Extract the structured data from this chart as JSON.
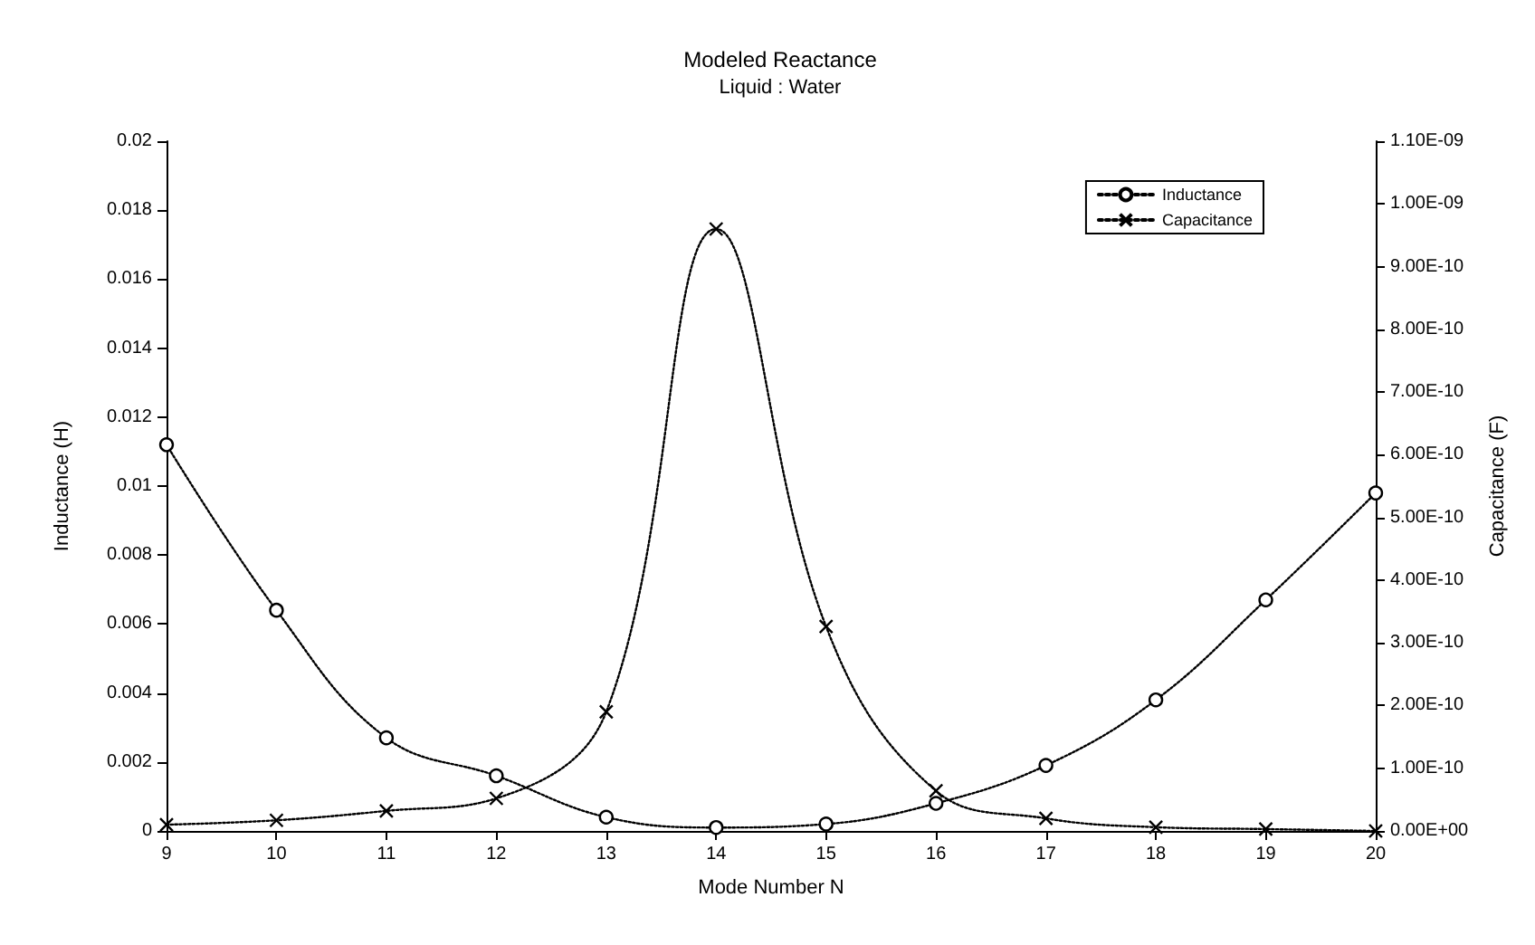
{
  "chart_data": {
    "type": "line",
    "title": "Modeled Reactance",
    "subtitle": "Liquid : Water",
    "xlabel": "Mode Number N",
    "ylabel": "Inductance (H)",
    "y2label": "Capacitance (F)",
    "x": [
      9,
      10,
      11,
      12,
      13,
      14,
      15,
      16,
      17,
      18,
      19,
      20
    ],
    "series": [
      {
        "name": "Inductance",
        "color": "#000000",
        "marker": "circle",
        "values": [
          0.0112,
          0.0064,
          0.0027,
          0.0016,
          0.0004,
          0.0001,
          0.0002,
          0.0008,
          0.0019,
          0.0038,
          0.0067,
          0.0098
        ]
      },
      {
        "name": "Capacitance",
        "color": "#000000",
        "marker": "cross",
        "axis": "y2",
        "values": [
          1e-11,
          1.7e-11,
          3.2e-11,
          5.2e-11,
          1.9e-10,
          9.6e-10,
          3.26e-10,
          6.4e-11,
          2e-11,
          6e-12,
          3e-12,
          0
        ]
      }
    ],
    "xlim": [
      9,
      20
    ],
    "xticks": [
      9,
      10,
      11,
      12,
      13,
      14,
      15,
      16,
      17,
      18,
      19,
      20
    ],
    "ylim": [
      0,
      0.02
    ],
    "yticks": [
      0,
      0.002,
      0.004,
      0.006,
      0.008,
      0.01,
      0.012,
      0.014,
      0.016,
      0.018,
      0.02
    ],
    "y2lim": [
      0,
      1.1e-09
    ],
    "y2ticks": [
      {
        "value": 0,
        "label": "0.00E+00"
      },
      {
        "value": 1e-10,
        "label": "1.00E-10"
      },
      {
        "value": 2e-10,
        "label": "2.00E-10"
      },
      {
        "value": 3e-10,
        "label": "3.00E-10"
      },
      {
        "value": 4e-10,
        "label": "4.00E-10"
      },
      {
        "value": 5e-10,
        "label": "5.00E-10"
      },
      {
        "value": 6e-10,
        "label": "6.00E-10"
      },
      {
        "value": 7e-10,
        "label": "7.00E-10"
      },
      {
        "value": 8e-10,
        "label": "8.00E-10"
      },
      {
        "value": 9e-10,
        "label": "9.00E-10"
      },
      {
        "value": 1e-09,
        "label": "1.00E-09"
      },
      {
        "value": 1.1e-09,
        "label": "1.10E-09"
      }
    ],
    "grid": false,
    "legend": "top right",
    "line_style": "dotted"
  }
}
